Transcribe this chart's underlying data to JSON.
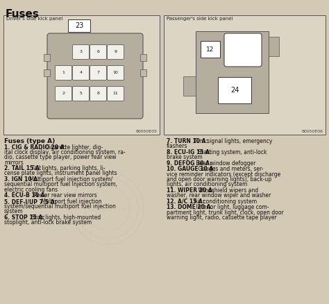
{
  "title": "Fuses",
  "bg_color": "#d4c9b4",
  "panel_bg": "#ddd5c4",
  "fuse_panel_bg": "#b5ad9e",
  "fuse_color": "#f2f0ea",
  "box_edge": "#555555",
  "left_panel_label": "Driver's side kick panel",
  "right_panel_label": "Passenger's side kick panel",
  "left_code": "80050E05",
  "right_code": "80050E06",
  "left_fuse_number": "23",
  "right_fuse_12": "12",
  "right_fuse_24": "24",
  "left_fuses": [
    {
      "num": "3",
      "row": 0,
      "col": 1
    },
    {
      "num": "6",
      "row": 0,
      "col": 2
    },
    {
      "num": "9",
      "row": 0,
      "col": 3
    },
    {
      "num": "1",
      "row": 1,
      "col": 0
    },
    {
      "num": "4",
      "row": 1,
      "col": 1
    },
    {
      "num": "7",
      "row": 1,
      "col": 2
    },
    {
      "num": "10",
      "row": 1,
      "col": 3
    },
    {
      "num": "2",
      "row": 2,
      "col": 0
    },
    {
      "num": "5",
      "row": 2,
      "col": 1
    },
    {
      "num": "8",
      "row": 2,
      "col": 2
    },
    {
      "num": "11",
      "row": 2,
      "col": 3
    }
  ],
  "fuses_type_label": "Fuses (type A)",
  "left_descriptions": [
    {
      "bold": "1. CIG & RADIO 20 A:",
      "rest": " Cigarette lighter, dig-\nital clock display, air conditioning system, ra-\ndio, cassette type player, power rear view\nmirrors"
    },
    {
      "bold": "2. TAIL 15 A:",
      "rest": " Tail lights, parking lights, li-\ncense plate lights, instrument panel lights"
    },
    {
      "bold": "3. IGN 10 A:",
      "rest": " Multiport fuel injection system/\nsequential multiport fuel injection system,\nelectric cooling fans"
    },
    {
      "bold": "4. ECU-B 10 A:",
      "rest": " Power rear view mirrors"
    },
    {
      "bold": "5. DEF-I/UP 7.5 A:",
      "rest": " Multiport fuel injection\nsystem/sequential multiport fuel injection\nsystem"
    },
    {
      "bold": "6. STOP 15 A:",
      "rest": " Stop lights, high-mounted\nstoplight, anti-lock brake system"
    }
  ],
  "right_descriptions": [
    {
      "bold": "7. TURN 10 A:",
      "rest": " Turn signal lights, emergency\nflashers"
    },
    {
      "bold": "8. ECU-IG 15 A:",
      "rest": " Starting system, anti-lock\nbrake system"
    },
    {
      "bold": "9. DEFOG 30 A:",
      "rest": " Rear window defogger"
    },
    {
      "bold": "10. GAUGE 10 A:",
      "rest": " Gauges and meters, ser-\nvice reminder indicators (except discharge\nand open door warning lights), back-up\nlights, air conditioning system"
    },
    {
      "bold": "11. WIPER 20 A:",
      "rest": " Windshield wipers and\nwasher, rear window wiper and washer"
    },
    {
      "bold": "12. A/C 15 A:",
      "rest": " Air conditioning system"
    },
    {
      "bold": "13. DOME 20 A:",
      "rest": " Interior light, luggage com-\npartment light, trunk light, clock, open door\nwarning light, radio, cassette tape player"
    }
  ]
}
